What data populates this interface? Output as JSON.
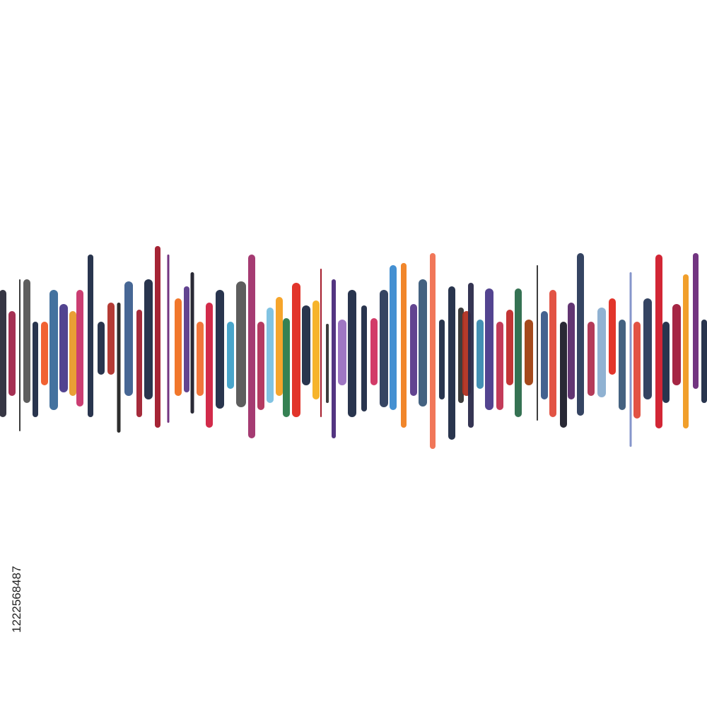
{
  "image": {
    "id_label": "1222568487"
  }
}
